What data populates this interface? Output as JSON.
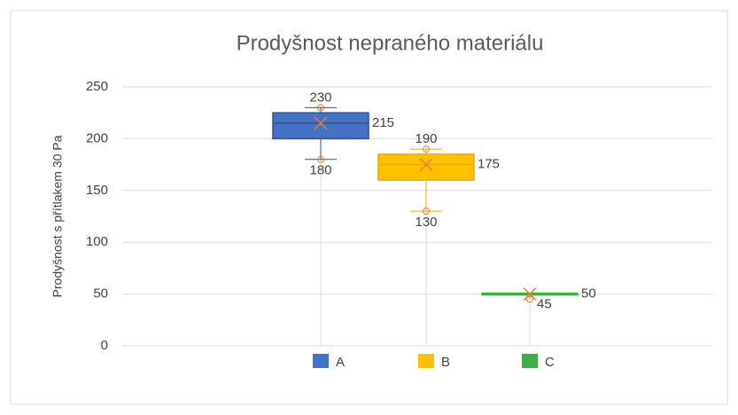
{
  "chart_data": {
    "type": "box",
    "title": "Prodyšnost nepraného materiálu",
    "y_label": "Prodyšnost s přítlakem 30 Pa",
    "ylim": [
      0,
      250
    ],
    "yticks": [
      0,
      50,
      100,
      150,
      200,
      250
    ],
    "grid": true,
    "legend": "bottom",
    "mean_color": "#ed7d31",
    "series": [
      {
        "name": "A",
        "color": "#4472c4",
        "stroke": "#2f528f",
        "min": 180,
        "q1": 200,
        "median": 215,
        "q3": 225,
        "max": 230,
        "mean": 215
      },
      {
        "name": "B",
        "color": "#ffc000",
        "stroke": "#e6ac00",
        "min": 130,
        "q1": 160,
        "median": 175,
        "q3": 185,
        "max": 190,
        "mean": 175
      },
      {
        "name": "C",
        "color": "#3cae4a",
        "stroke": "#3cae4a",
        "min": 45,
        "q1": 50,
        "median": 50,
        "q3": 50,
        "mean": 50
      }
    ]
  }
}
